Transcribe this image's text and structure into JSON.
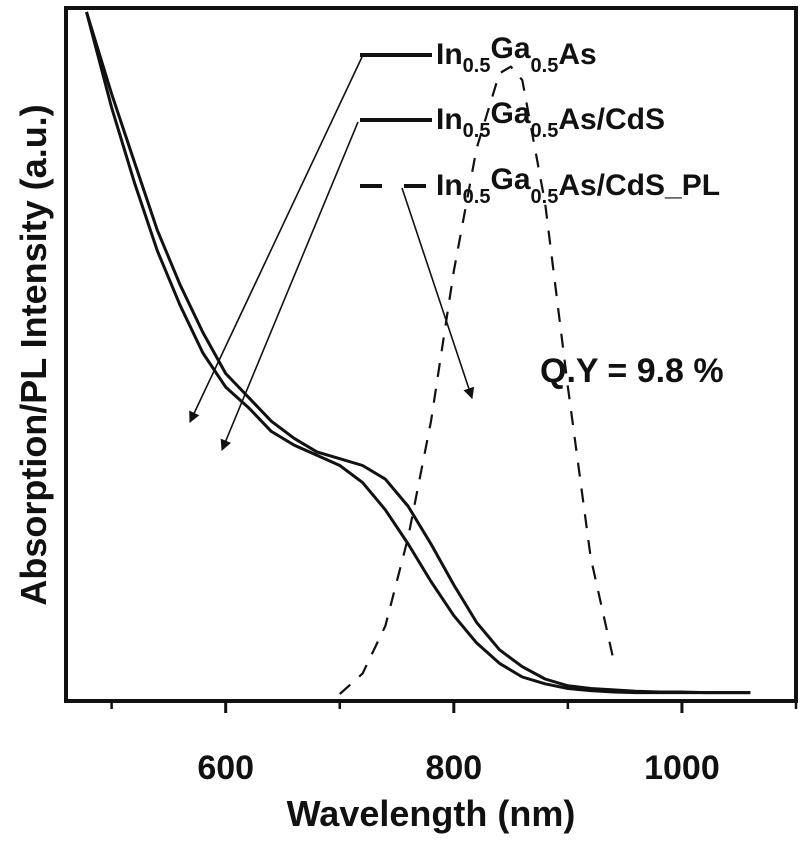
{
  "chart_data": {
    "type": "line",
    "xlabel": "Wavelength (nm)",
    "ylabel": "Absorption/PL Intensity (a.u.)",
    "xlim": [
      460,
      1100
    ],
    "ylim": [
      0,
      1
    ],
    "x_ticks": [
      600,
      800,
      1000
    ],
    "x_tick_labels": [
      "600",
      "800",
      "1000"
    ],
    "x_minor_ticks": [
      500,
      700,
      900,
      1100
    ],
    "grid": false,
    "legend_position": "top-right",
    "legend": [
      {
        "base1": "In",
        "sub1": "0.5",
        "base2": "Ga",
        "sub2": "0.5",
        "tail": "As"
      },
      {
        "base1": "In",
        "sub1": "0.5",
        "base2": "Ga",
        "sub2": "0.5",
        "tail": "As/CdS"
      },
      {
        "base1": "In",
        "sub1": "0.5",
        "base2": "Ga",
        "sub2": "0.5",
        "tail": "As/CdS_PL"
      }
    ],
    "annotation": "Q.Y = 9.8 %",
    "series": [
      {
        "name": "In0.5Ga0.5As",
        "style": "solid",
        "x": [
          478,
          500,
          520,
          540,
          560,
          580,
          600,
          620,
          640,
          660,
          680,
          700,
          720,
          740,
          760,
          780,
          800,
          820,
          840,
          860,
          880,
          900,
          920,
          940,
          960,
          980,
          1000,
          1020,
          1040,
          1060
        ],
        "y": [
          1.0,
          0.86,
          0.75,
          0.65,
          0.57,
          0.5,
          0.45,
          0.42,
          0.385,
          0.365,
          0.35,
          0.335,
          0.31,
          0.27,
          0.22,
          0.165,
          0.115,
          0.075,
          0.045,
          0.025,
          0.015,
          0.008,
          0.005,
          0.003,
          0.002,
          0.002,
          0.002,
          0.002,
          0.002,
          0.002
        ]
      },
      {
        "name": "In0.5Ga0.5As/CdS",
        "style": "solid",
        "x": [
          478,
          500,
          520,
          540,
          560,
          580,
          600,
          620,
          640,
          660,
          680,
          700,
          720,
          740,
          760,
          780,
          800,
          820,
          840,
          860,
          880,
          900,
          920,
          940,
          960,
          980,
          1000,
          1020,
          1040,
          1060
        ],
        "y": [
          1.0,
          0.88,
          0.78,
          0.68,
          0.6,
          0.53,
          0.47,
          0.435,
          0.4,
          0.375,
          0.355,
          0.345,
          0.335,
          0.315,
          0.275,
          0.22,
          0.16,
          0.105,
          0.065,
          0.04,
          0.022,
          0.012,
          0.008,
          0.006,
          0.004,
          0.003,
          0.003,
          0.002,
          0.002,
          0.002
        ]
      },
      {
        "name": "In0.5Ga0.5As/CdS_PL",
        "style": "dashed",
        "x": [
          700,
          720,
          740,
          760,
          780,
          800,
          820,
          840,
          850,
          860,
          880,
          900,
          920,
          940
        ],
        "y": [
          0.0,
          0.03,
          0.1,
          0.23,
          0.4,
          0.62,
          0.8,
          0.91,
          0.92,
          0.9,
          0.72,
          0.45,
          0.2,
          0.05
        ]
      }
    ]
  }
}
